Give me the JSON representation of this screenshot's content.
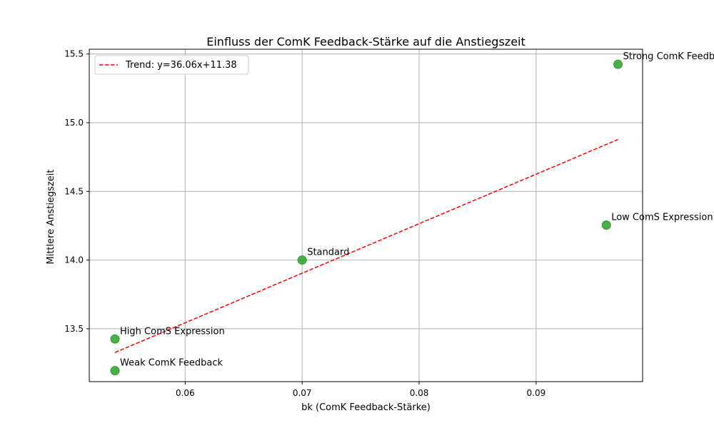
{
  "chart_data": {
    "type": "scatter",
    "title": "Einfluss der ComK Feedback-Stärke auf die Anstiegszeit",
    "xlabel": "bk (ComK Feedback-Stärke)",
    "ylabel": "Mittlere Anstiegszeit",
    "xlim": [
      0.0518,
      0.0991
    ],
    "ylim": [
      13.115,
      15.535
    ],
    "xticks": [
      0.06,
      0.07,
      0.08,
      0.09
    ],
    "xtick_labels": [
      "0.06",
      "0.07",
      "0.08",
      "0.09"
    ],
    "yticks": [
      13.5,
      14.0,
      14.5,
      15.0,
      15.5
    ],
    "ytick_labels": [
      "13.5",
      "14.0",
      "14.5",
      "15.0",
      "15.5"
    ],
    "grid": true,
    "legend_position": "top-left",
    "marker_color": "#2ca02c",
    "points": [
      {
        "x": 0.054,
        "y": 13.195,
        "label": "Weak ComK Feedback"
      },
      {
        "x": 0.054,
        "y": 13.425,
        "label": "High ComS Expression"
      },
      {
        "x": 0.07,
        "y": 14.0,
        "label": "Standard"
      },
      {
        "x": 0.096,
        "y": 14.255,
        "label": "Low ComS Expression"
      },
      {
        "x": 0.097,
        "y": 15.425,
        "label": "Strong ComK Feedback"
      }
    ],
    "trend": {
      "label": "Trend: y=36.06x+11.38",
      "slope": 36.06,
      "intercept": 11.38,
      "x_range": [
        0.054,
        0.097
      ],
      "color": "#ff0000",
      "style": "dashed"
    }
  }
}
